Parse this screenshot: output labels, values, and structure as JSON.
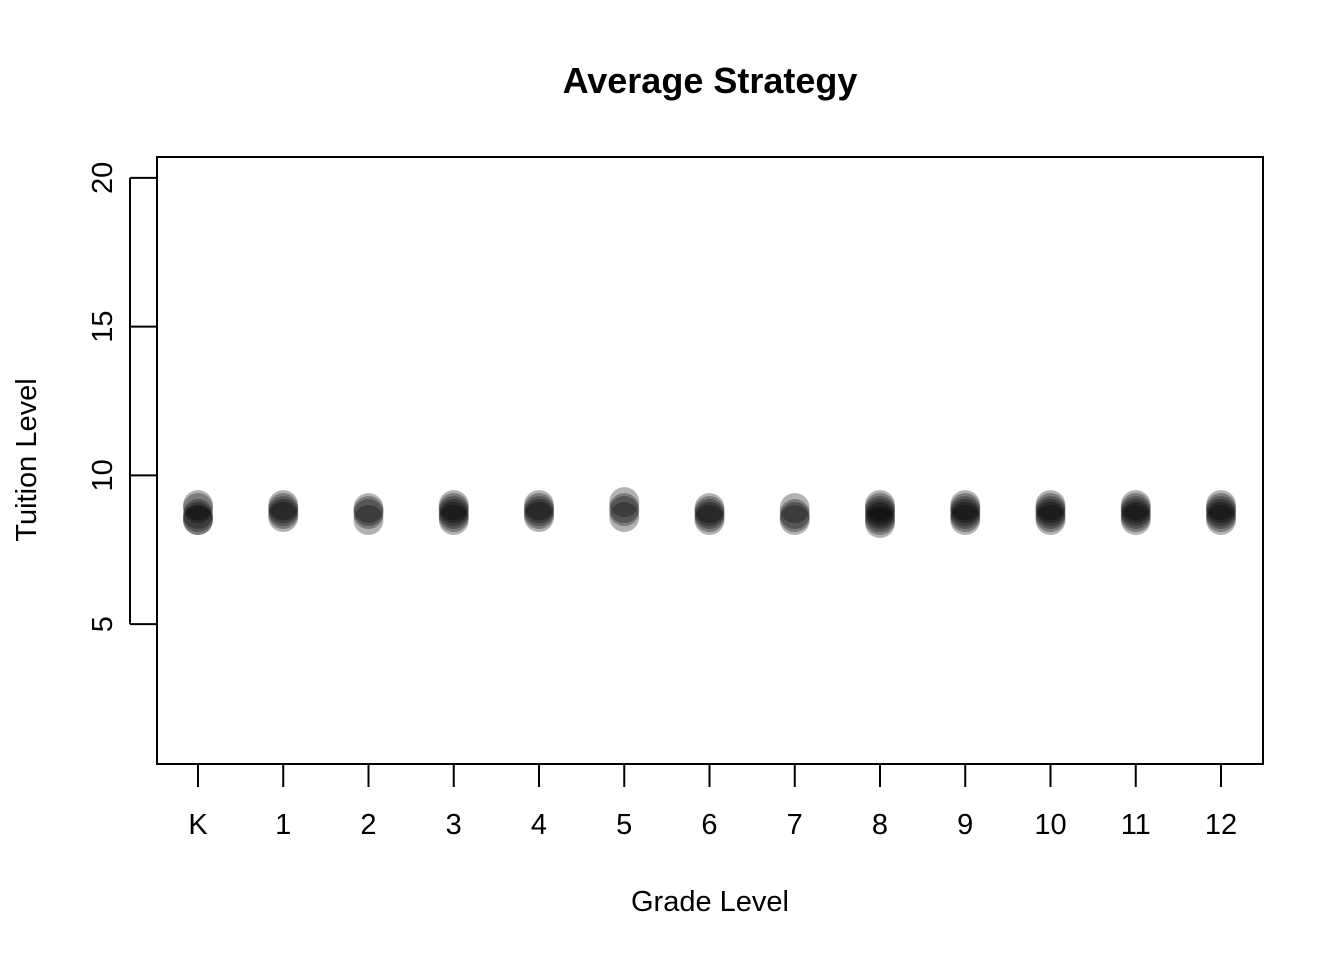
{
  "chart_data": {
    "type": "scatter",
    "title": "Average Strategy",
    "xlabel": "Grade Level",
    "ylabel": "Tuition Level",
    "categories": [
      "K",
      "1",
      "2",
      "3",
      "4",
      "5",
      "6",
      "7",
      "8",
      "9",
      "10",
      "11",
      "12"
    ],
    "y_ticks": [
      "5",
      "10",
      "15",
      "20"
    ],
    "ylim": [
      0.3,
      20.7
    ],
    "grid": false,
    "legend": "none",
    "point_color": "#000000",
    "point_opacity": 0.3,
    "points": [
      {
        "x": "K",
        "y": [
          9.0,
          8.9,
          8.7,
          8.6,
          8.5,
          8.5
        ]
      },
      {
        "x": "1",
        "y": [
          9.0,
          8.9,
          8.8,
          8.7,
          8.6
        ]
      },
      {
        "x": "2",
        "y": [
          8.9,
          8.8,
          8.7,
          8.5
        ]
      },
      {
        "x": "3",
        "y": [
          9.0,
          8.9,
          8.8,
          8.7,
          8.6,
          8.5
        ]
      },
      {
        "x": "4",
        "y": [
          9.0,
          8.9,
          8.8,
          8.7,
          8.6
        ]
      },
      {
        "x": "5",
        "y": [
          9.1,
          8.9,
          8.8,
          8.6
        ]
      },
      {
        "x": "6",
        "y": [
          8.9,
          8.8,
          8.7,
          8.6,
          8.5
        ]
      },
      {
        "x": "7",
        "y": [
          8.9,
          8.7,
          8.6,
          8.5
        ]
      },
      {
        "x": "8",
        "y": [
          9.0,
          8.9,
          8.8,
          8.7,
          8.6,
          8.5,
          8.4
        ]
      },
      {
        "x": "9",
        "y": [
          9.0,
          8.9,
          8.8,
          8.7,
          8.6,
          8.5
        ]
      },
      {
        "x": "10",
        "y": [
          9.0,
          8.9,
          8.8,
          8.7,
          8.6,
          8.5
        ]
      },
      {
        "x": "11",
        "y": [
          9.0,
          8.9,
          8.8,
          8.7,
          8.6,
          8.5
        ]
      },
      {
        "x": "12",
        "y": [
          9.0,
          8.9,
          8.8,
          8.7,
          8.6,
          8.5
        ]
      }
    ]
  }
}
